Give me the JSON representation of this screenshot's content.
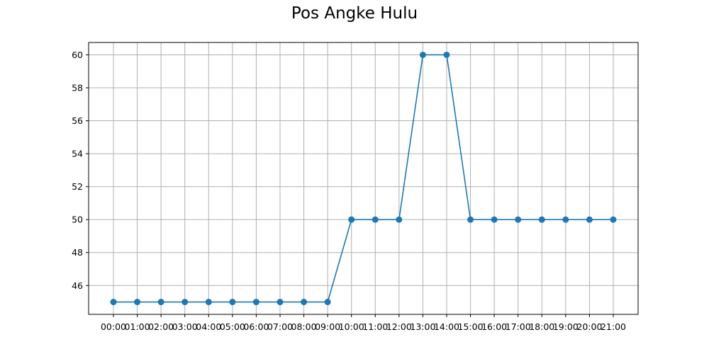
{
  "chart_data": {
    "type": "line",
    "title": "Pos Angke Hulu",
    "xlabel": "",
    "ylabel": "",
    "categories": [
      "00:00",
      "01:00",
      "02:00",
      "03:00",
      "04:00",
      "05:00",
      "06:00",
      "07:00",
      "08:00",
      "09:00",
      "10:00",
      "11:00",
      "12:00",
      "13:00",
      "14:00",
      "15:00",
      "16:00",
      "17:00",
      "18:00",
      "19:00",
      "20:00",
      "21:00"
    ],
    "series": [
      {
        "values": [
          45,
          45,
          45,
          45,
          45,
          45,
          45,
          45,
          45,
          45,
          50,
          50,
          50,
          60,
          60,
          50,
          50,
          50,
          50,
          50,
          50,
          50
        ],
        "color": "#1f77b4"
      }
    ],
    "ylim": [
      44.25,
      60.75
    ],
    "yticks": [
      46,
      48,
      50,
      52,
      54,
      56,
      58,
      60
    ],
    "grid": true,
    "marker": "circle"
  }
}
